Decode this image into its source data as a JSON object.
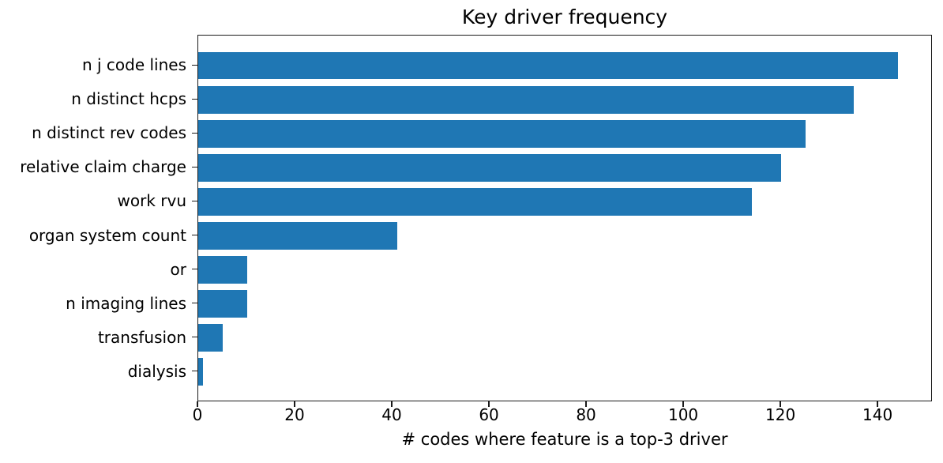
{
  "chart_data": {
    "type": "bar",
    "orientation": "horizontal",
    "title": "Key driver frequency",
    "xlabel": "# codes where feature is a top-3 driver",
    "ylabel": "",
    "categories": [
      "n j code lines",
      "n distinct hcps",
      "n distinct rev codes",
      "relative claim charge",
      "work rvu",
      "organ system count",
      "or",
      "n imaging lines",
      "transfusion",
      "dialysis"
    ],
    "values": [
      144,
      135,
      125,
      120,
      114,
      41,
      10,
      10,
      5,
      1
    ],
    "x_ticks": [
      0,
      20,
      40,
      60,
      80,
      100,
      120,
      140
    ],
    "xlim": [
      0,
      151.2
    ],
    "bar_color": "#1f77b4",
    "grid": false,
    "legend_position": "none",
    "background_color": "#ffffff"
  }
}
